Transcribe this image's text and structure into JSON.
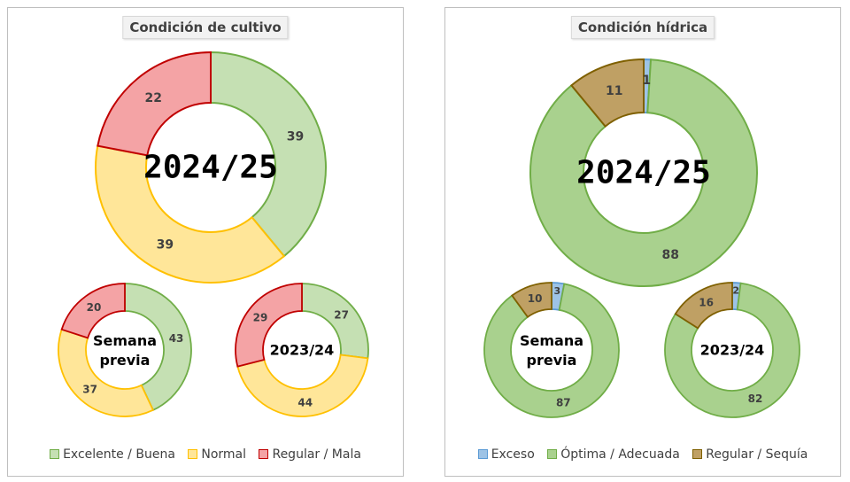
{
  "chart_data": [
    {
      "type": "donut",
      "title": "Condición de cultivo",
      "series_names": [
        "Excelente / Buena",
        "Normal",
        "Regular / Mala"
      ],
      "colors": {
        "fill": [
          "#c5e0b3",
          "#ffe699",
          "#f4a3a5"
        ],
        "stroke": [
          "#70ad47",
          "#ffc000",
          "#c00000"
        ]
      },
      "rings": [
        {
          "label": "2024/25",
          "values": [
            39,
            39,
            22
          ]
        },
        {
          "label": "Semana previa",
          "values": [
            43,
            37,
            20
          ]
        },
        {
          "label": "2023/24",
          "values": [
            27,
            44,
            29
          ]
        }
      ]
    },
    {
      "type": "donut",
      "title": "Condición hídrica",
      "series_names": [
        "Exceso",
        "Óptima / Adecuada",
        "Regular / Sequía"
      ],
      "colors": {
        "fill": [
          "#9dc3e6",
          "#a9d18e",
          "#bfa064"
        ],
        "stroke": [
          "#5b9bd5",
          "#70ad47",
          "#7f6000"
        ]
      },
      "rings": [
        {
          "label": "2024/25",
          "values": [
            1,
            88,
            11
          ]
        },
        {
          "label": "Semana previa",
          "values": [
            3,
            87,
            10
          ]
        },
        {
          "label": "2023/24",
          "values": [
            2,
            82,
            16
          ]
        }
      ]
    }
  ]
}
